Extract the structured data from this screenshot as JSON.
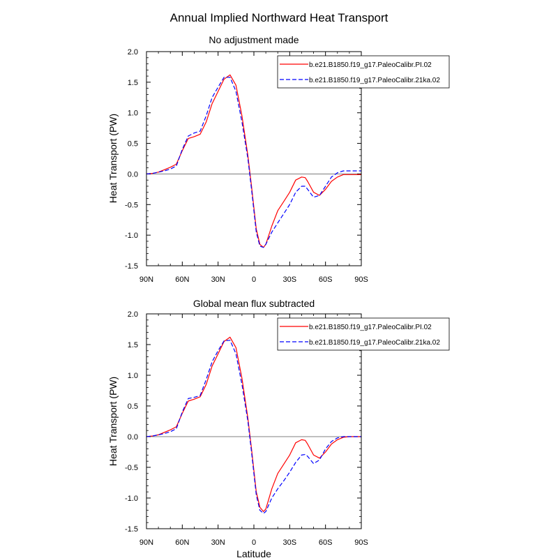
{
  "figure": {
    "title": "Annual Implied Northward Heat Transport"
  },
  "colors": {
    "series_pi": "#ff0000",
    "series_lgm": "#0000ff",
    "zero_line": "#999999"
  },
  "chart_data": [
    {
      "type": "line",
      "title": "No adjustment made",
      "xlabel": "",
      "ylabel": "Heat Transport (PW)",
      "xlim": [
        90,
        -90
      ],
      "ylim": [
        -1.5,
        2.0
      ],
      "x_ticks": [
        90,
        60,
        30,
        0,
        -30,
        -60,
        -90
      ],
      "x_tick_labels": [
        "90N",
        "60N",
        "30N",
        "0",
        "30S",
        "60S",
        "90S"
      ],
      "y_ticks": [
        -1.5,
        -1.0,
        -0.5,
        0.0,
        0.5,
        1.0,
        1.5,
        2.0
      ],
      "y_tick_labels": [
        "-1.5",
        "-1.0",
        "-0.5",
        "0.0",
        "0.5",
        "1.0",
        "1.5",
        "2.0"
      ],
      "legend_position": "top-right",
      "series": [
        {
          "name": "b.e21.B1850.f19_g17.PaleoCalibr.PI.02",
          "style": "solid",
          "color": "#ff0000",
          "x": [
            90,
            85,
            80,
            75,
            70,
            65,
            60,
            55,
            50,
            45,
            40,
            35,
            30,
            25,
            20,
            15,
            10,
            5,
            2,
            0,
            -2,
            -5,
            -8,
            -10,
            -15,
            -20,
            -25,
            -30,
            -35,
            -40,
            -43,
            -45,
            -50,
            -55,
            -60,
            -65,
            -70,
            -75,
            -80,
            -85,
            -90
          ],
          "y": [
            0.0,
            0.01,
            0.03,
            0.07,
            0.11,
            0.16,
            0.38,
            0.58,
            0.61,
            0.65,
            0.85,
            1.15,
            1.35,
            1.55,
            1.62,
            1.45,
            0.95,
            0.3,
            -0.2,
            -0.55,
            -0.9,
            -1.15,
            -1.2,
            -1.15,
            -0.85,
            -0.6,
            -0.45,
            -0.3,
            -0.1,
            -0.05,
            -0.06,
            -0.12,
            -0.3,
            -0.35,
            -0.25,
            -0.12,
            -0.05,
            -0.01,
            -0.01,
            -0.01,
            -0.01
          ]
        },
        {
          "name": "b.e21.B1850.f19_g17.PaleoCalibr.21ka.02",
          "style": "dashed",
          "color": "#0000ff",
          "x": [
            90,
            85,
            80,
            75,
            70,
            65,
            60,
            55,
            50,
            45,
            40,
            35,
            30,
            25,
            20,
            15,
            10,
            5,
            2,
            0,
            -2,
            -5,
            -8,
            -10,
            -15,
            -20,
            -25,
            -30,
            -35,
            -40,
            -43,
            -45,
            -50,
            -55,
            -60,
            -65,
            -70,
            -75,
            -80,
            -85,
            -90
          ],
          "y": [
            0.0,
            0.01,
            0.03,
            0.05,
            0.08,
            0.13,
            0.4,
            0.62,
            0.67,
            0.7,
            0.95,
            1.25,
            1.42,
            1.58,
            1.58,
            1.35,
            0.85,
            0.25,
            -0.25,
            -0.6,
            -0.95,
            -1.18,
            -1.2,
            -1.15,
            -0.95,
            -0.8,
            -0.65,
            -0.5,
            -0.3,
            -0.2,
            -0.2,
            -0.25,
            -0.38,
            -0.35,
            -0.2,
            -0.05,
            0.02,
            0.05,
            0.05,
            0.05,
            0.05
          ]
        }
      ]
    },
    {
      "type": "line",
      "title": "Global mean flux subtracted",
      "xlabel": "Latitude",
      "ylabel": "Heat Transport (PW)",
      "xlim": [
        90,
        -90
      ],
      "ylim": [
        -1.5,
        2.0
      ],
      "x_ticks": [
        90,
        60,
        30,
        0,
        -30,
        -60,
        -90
      ],
      "x_tick_labels": [
        "90N",
        "60N",
        "30N",
        "0",
        "30S",
        "60S",
        "90S"
      ],
      "y_ticks": [
        -1.5,
        -1.0,
        -0.5,
        0.0,
        0.5,
        1.0,
        1.5,
        2.0
      ],
      "y_tick_labels": [
        "-1.5",
        "-1.0",
        "-0.5",
        "0.0",
        "0.5",
        "1.0",
        "1.5",
        "2.0"
      ],
      "legend_position": "top-right",
      "series": [
        {
          "name": "b.e21.B1850.f19_g17.PaleoCalibr.PI.02",
          "style": "solid",
          "color": "#ff0000",
          "x": [
            90,
            85,
            80,
            75,
            70,
            65,
            60,
            55,
            50,
            45,
            40,
            35,
            30,
            25,
            20,
            15,
            10,
            5,
            2,
            0,
            -2,
            -5,
            -8,
            -10,
            -15,
            -20,
            -25,
            -30,
            -35,
            -40,
            -43,
            -45,
            -50,
            -55,
            -60,
            -65,
            -70,
            -75,
            -80,
            -85,
            -90
          ],
          "y": [
            0.0,
            0.01,
            0.03,
            0.07,
            0.11,
            0.16,
            0.38,
            0.58,
            0.61,
            0.65,
            0.85,
            1.15,
            1.35,
            1.55,
            1.62,
            1.45,
            0.95,
            0.3,
            -0.2,
            -0.55,
            -0.9,
            -1.15,
            -1.22,
            -1.18,
            -0.85,
            -0.6,
            -0.45,
            -0.3,
            -0.1,
            -0.05,
            -0.06,
            -0.12,
            -0.3,
            -0.35,
            -0.25,
            -0.12,
            -0.05,
            -0.01,
            0.0,
            0.0,
            0.0
          ]
        },
        {
          "name": "b.e21.B1850.f19_g17.PaleoCalibr.21ka.02",
          "style": "dashed",
          "color": "#0000ff",
          "x": [
            90,
            85,
            80,
            75,
            70,
            65,
            60,
            55,
            50,
            45,
            40,
            35,
            30,
            25,
            20,
            15,
            10,
            5,
            2,
            0,
            -2,
            -5,
            -8,
            -10,
            -15,
            -20,
            -25,
            -30,
            -35,
            -40,
            -43,
            -45,
            -50,
            -55,
            -60,
            -65,
            -70,
            -75,
            -80,
            -85,
            -90
          ],
          "y": [
            0.0,
            0.01,
            0.03,
            0.05,
            0.08,
            0.13,
            0.4,
            0.62,
            0.64,
            0.67,
            0.93,
            1.22,
            1.4,
            1.56,
            1.57,
            1.35,
            0.85,
            0.25,
            -0.25,
            -0.6,
            -0.95,
            -1.2,
            -1.25,
            -1.22,
            -1.0,
            -0.85,
            -0.72,
            -0.58,
            -0.42,
            -0.3,
            -0.29,
            -0.32,
            -0.44,
            -0.38,
            -0.2,
            -0.08,
            -0.02,
            0.0,
            0.0,
            0.0,
            0.0
          ]
        }
      ]
    }
  ]
}
